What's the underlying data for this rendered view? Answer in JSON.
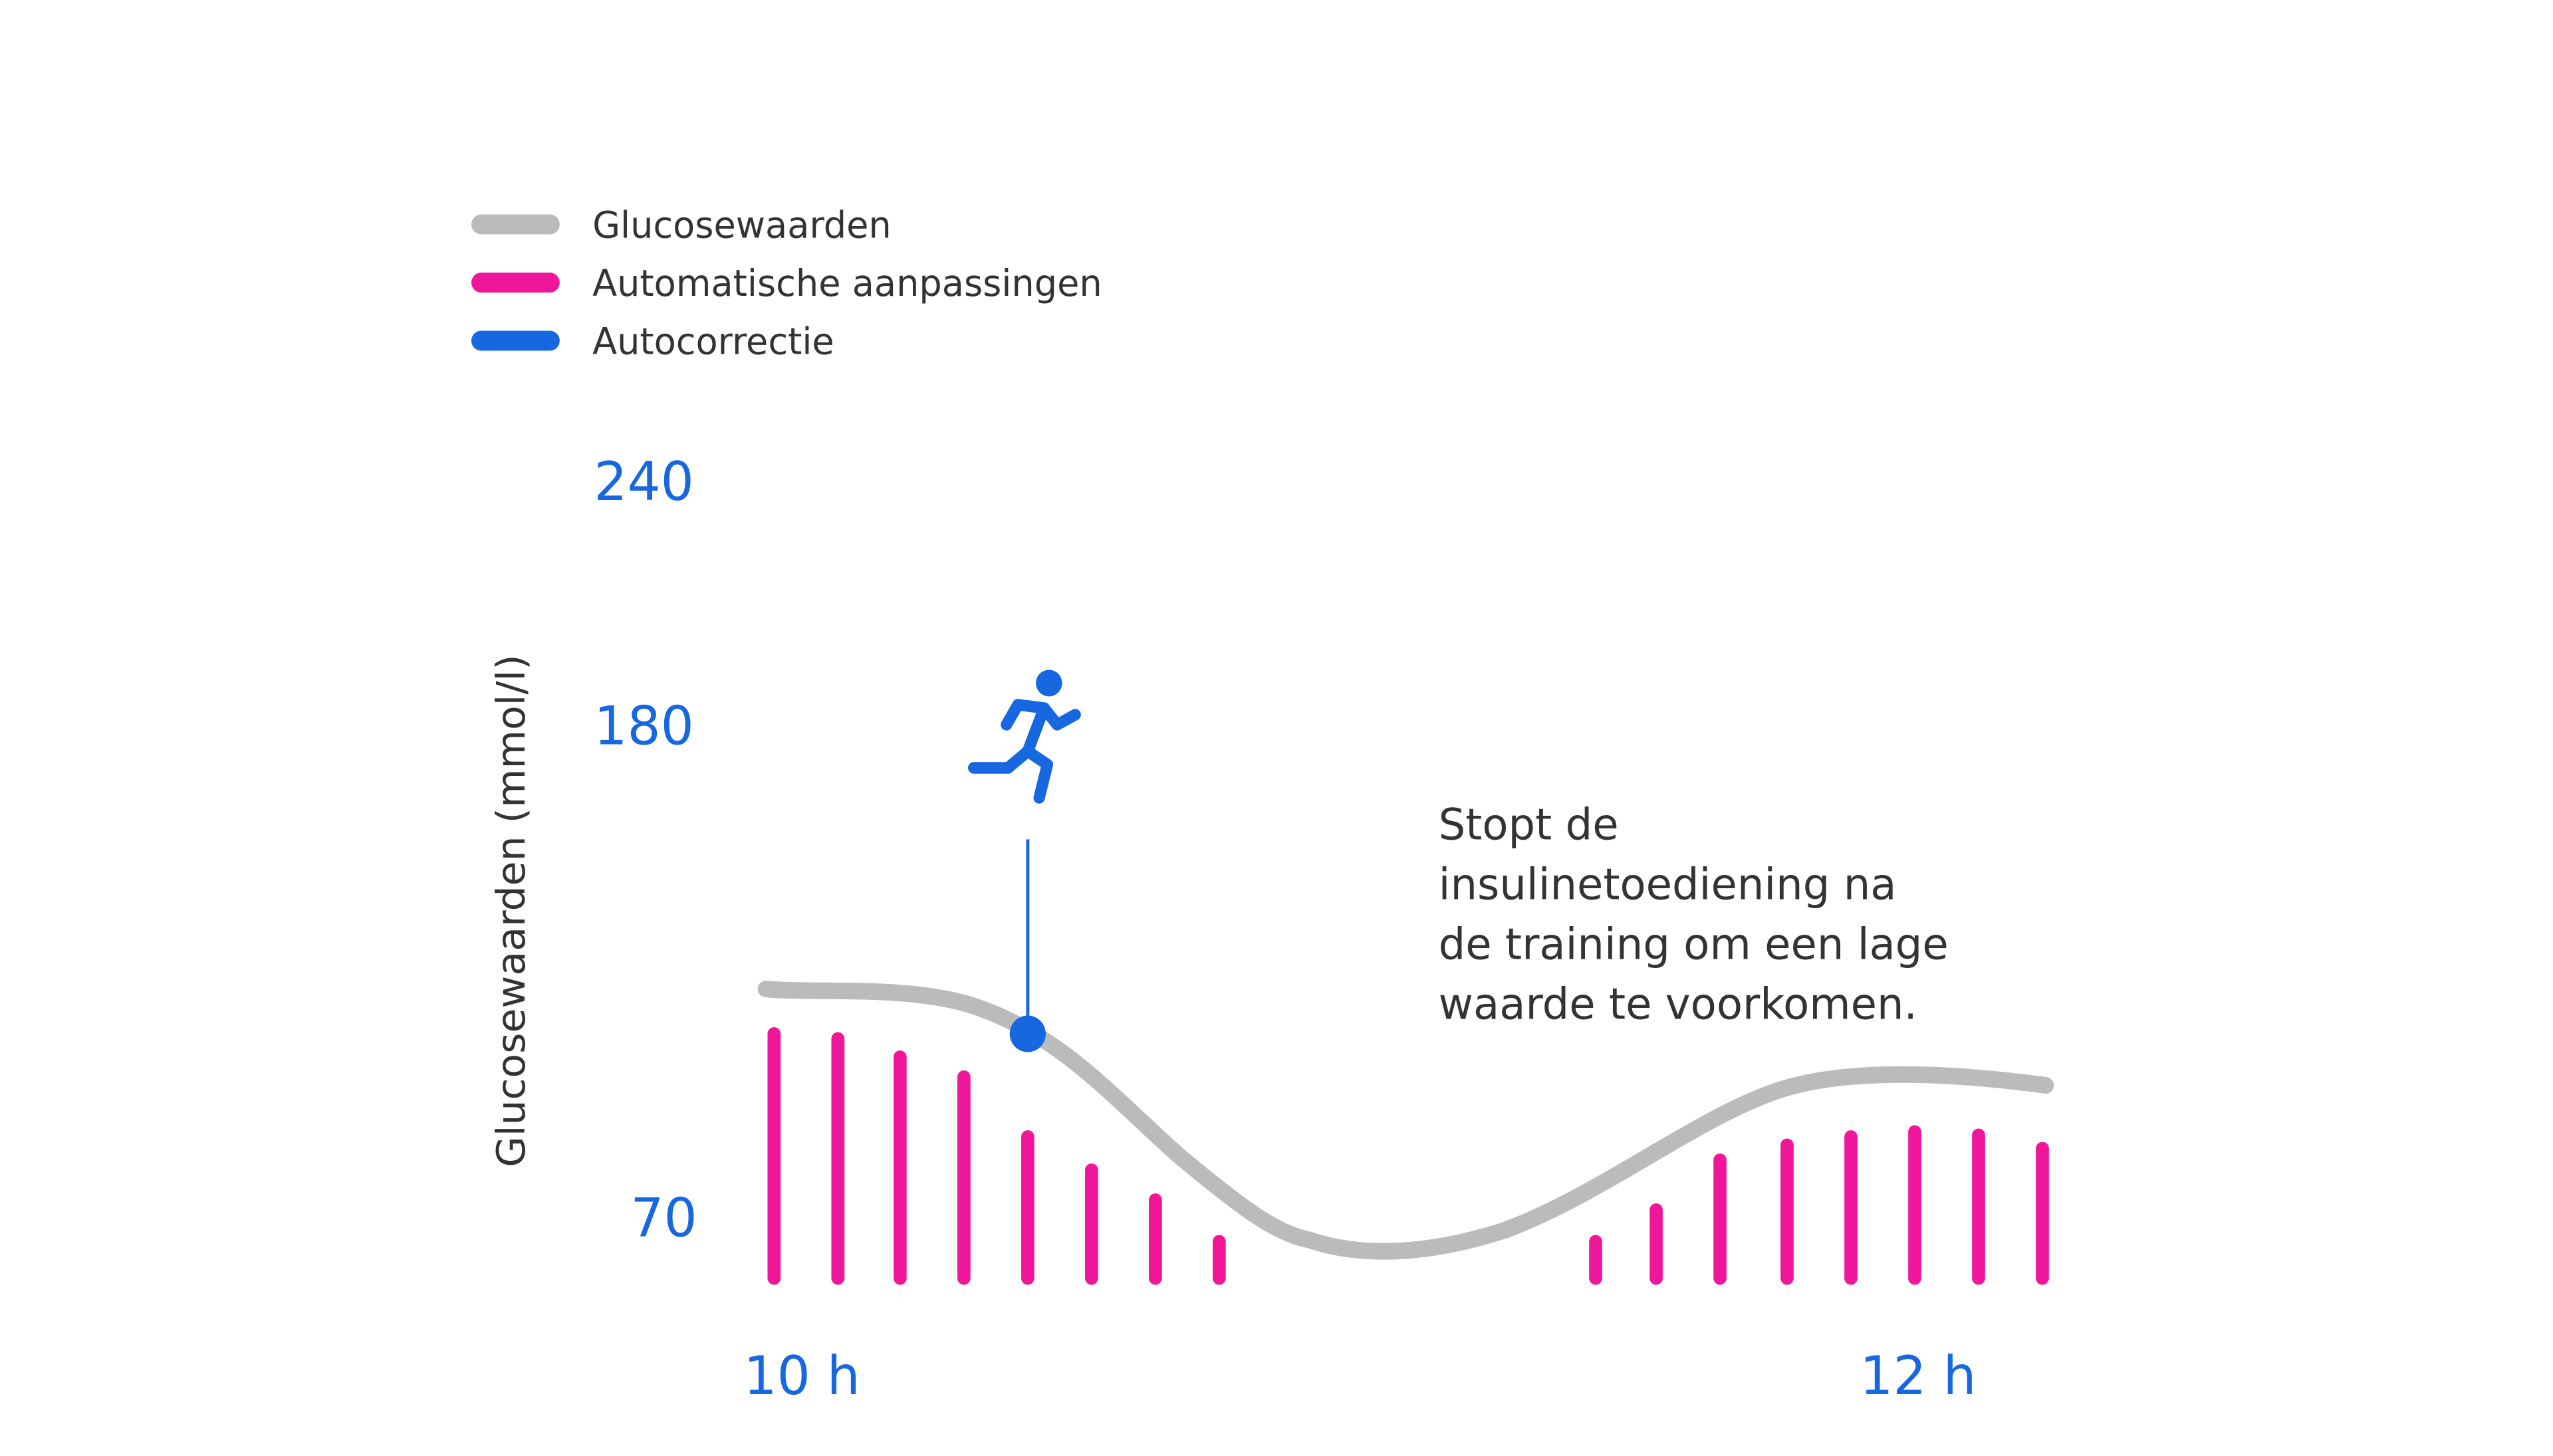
{
  "legend": {
    "items": [
      {
        "label": "Glucosewaarden"
      },
      {
        "label": "Automatische aanpassingen"
      },
      {
        "label": "Autocorrectie"
      }
    ]
  },
  "y_axis": {
    "title": "Glucosewaarden (mmol/l)",
    "ticks": [
      240,
      180,
      70
    ]
  },
  "x_axis": {
    "labels": [
      "10 h",
      "12 h"
    ]
  },
  "annotation": {
    "lines": [
      "Stopt de",
      "insulinetoediening na",
      "de training om een lage",
      "waarde te voorkomen."
    ]
  }
}
